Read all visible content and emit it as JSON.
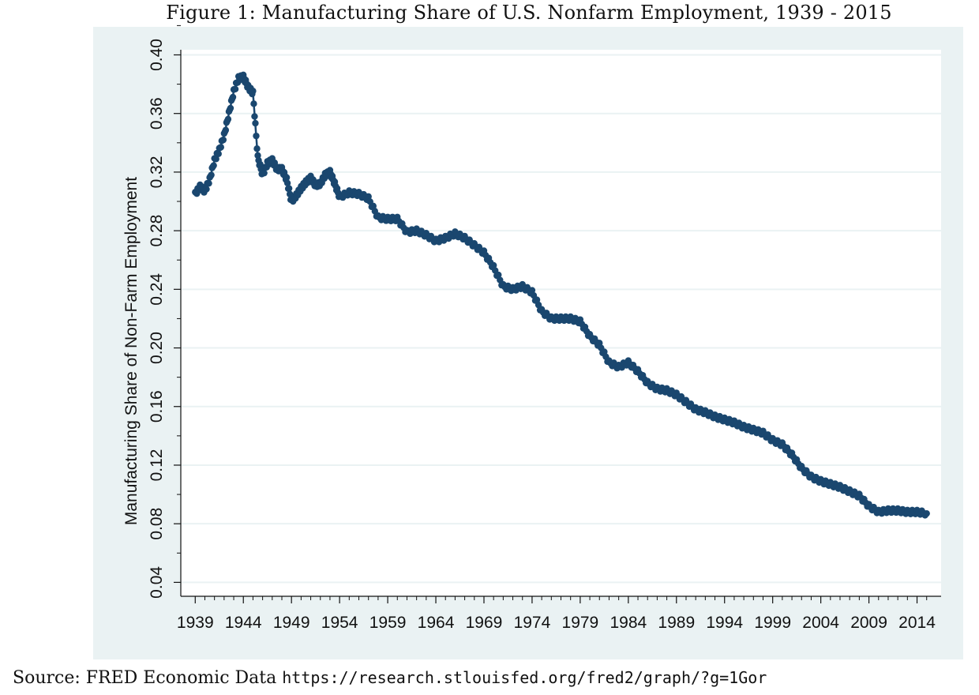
{
  "figure": {
    "title": "Figure 1: Manufacturing Share of U.S. Nonfarm Employment, 1939 - 2015",
    "source_label": "Source: FRED Economic Data",
    "source_url": "https://research.stlouisfed.org/fred2/graph/?g=1Gor"
  },
  "colors": {
    "series": "#1a476f",
    "panel_bg": "#eaf2f3",
    "plot_bg": "#ffffff",
    "grid": "#eaf2f3"
  },
  "chart_data": {
    "type": "line",
    "title": "Figure 1: Manufacturing Share of U.S. Nonfarm Employment, 1939 - 2015",
    "xlabel": "",
    "ylabel": "Manufacturing Share of Non-Farm Employment",
    "xlim": [
      1939,
      2015
    ],
    "ylim": [
      0.04,
      0.4
    ],
    "grid": true,
    "legend": "none",
    "markers": "filled circles (monthly observations)",
    "x_ticks": [
      "1939",
      "1944",
      "1949",
      "1954",
      "1959",
      "1964",
      "1969",
      "1974",
      "1979",
      "1984",
      "1989",
      "1994",
      "1999",
      "2004",
      "2009",
      "2014"
    ],
    "y_ticks": [
      "0.04",
      "0.08",
      "0.12",
      "0.16",
      "0.20",
      "0.24",
      "0.28",
      "0.32",
      "0.36",
      "0.40"
    ],
    "series": [
      {
        "x": [
          1939.0,
          1939.5,
          1940.0,
          1940.5,
          1941.0,
          1941.5,
          1942.0,
          1942.5,
          1943.0,
          1943.5,
          1944.0,
          1944.5,
          1945.0,
          1945.5,
          1946.0,
          1946.5,
          1947.0,
          1947.5,
          1948.0,
          1948.5,
          1949.0,
          1949.5,
          1950.0,
          1950.5,
          1951.0,
          1951.5,
          1952.0,
          1952.5,
          1953.0,
          1953.5,
          1954.0,
          1955.0,
          1956.0,
          1957.0,
          1958.0,
          1959.0,
          1960.0,
          1961.0,
          1962.0,
          1963.0,
          1964.0,
          1965.0,
          1966.0,
          1967.0,
          1968.0,
          1969.0,
          1970.0,
          1971.0,
          1972.0,
          1973.0,
          1974.0,
          1975.0,
          1976.0,
          1977.0,
          1978.0,
          1979.0,
          1980.0,
          1981.0,
          1982.0,
          1983.0,
          1984.0,
          1985.0,
          1986.0,
          1987.0,
          1988.0,
          1989.0,
          1990.0,
          1991.0,
          1992.0,
          1993.0,
          1994.0,
          1995.0,
          1996.0,
          1997.0,
          1998.0,
          1999.0,
          2000.0,
          2001.0,
          2002.0,
          2003.0,
          2004.0,
          2005.0,
          2006.0,
          2007.0,
          2008.0,
          2009.0,
          2010.0,
          2011.0,
          2012.0,
          2013.0,
          2014.0,
          2015.0
        ],
        "values": [
          0.305,
          0.31,
          0.307,
          0.315,
          0.328,
          0.335,
          0.345,
          0.36,
          0.375,
          0.384,
          0.385,
          0.378,
          0.374,
          0.33,
          0.318,
          0.326,
          0.328,
          0.322,
          0.322,
          0.315,
          0.3,
          0.304,
          0.309,
          0.313,
          0.316,
          0.311,
          0.312,
          0.318,
          0.32,
          0.312,
          0.303,
          0.306,
          0.305,
          0.302,
          0.289,
          0.288,
          0.288,
          0.279,
          0.28,
          0.277,
          0.273,
          0.275,
          0.278,
          0.275,
          0.27,
          0.265,
          0.255,
          0.242,
          0.24,
          0.242,
          0.238,
          0.225,
          0.22,
          0.22,
          0.22,
          0.218,
          0.208,
          0.202,
          0.19,
          0.187,
          0.19,
          0.184,
          0.176,
          0.172,
          0.171,
          0.168,
          0.163,
          0.158,
          0.156,
          0.153,
          0.151,
          0.149,
          0.146,
          0.144,
          0.142,
          0.137,
          0.134,
          0.127,
          0.118,
          0.112,
          0.109,
          0.107,
          0.105,
          0.102,
          0.099,
          0.092,
          0.088,
          0.089,
          0.089,
          0.088,
          0.088,
          0.087
        ]
      }
    ]
  }
}
